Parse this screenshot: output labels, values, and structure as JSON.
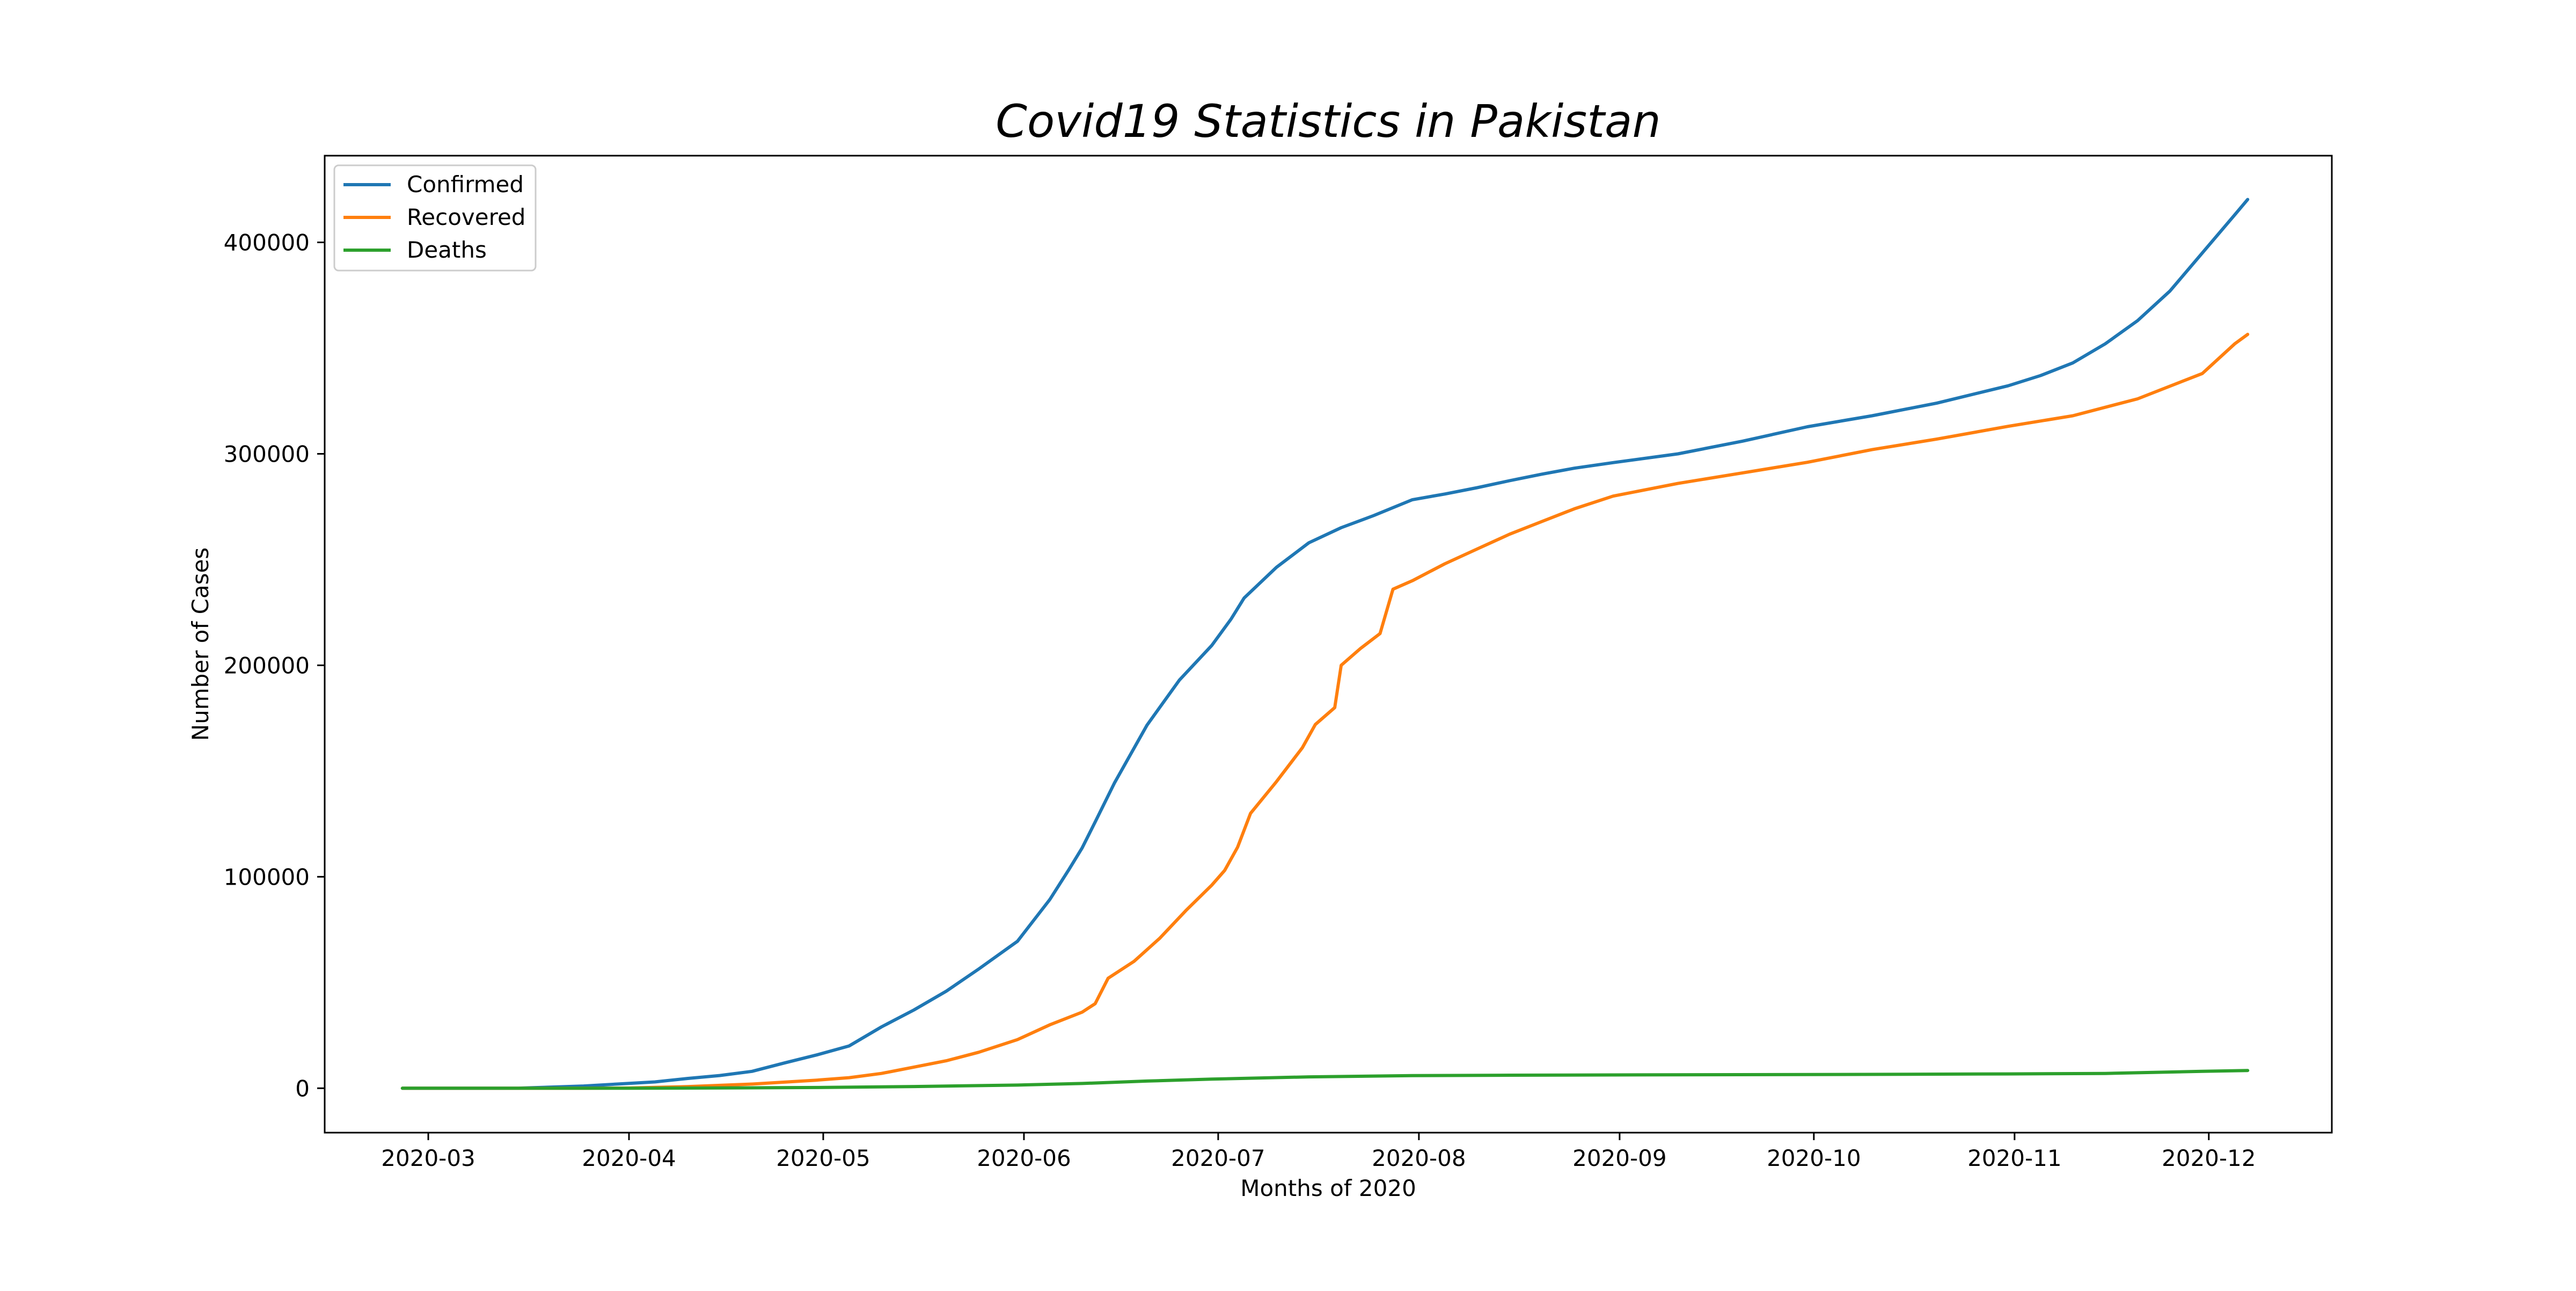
{
  "chart_data": {
    "type": "line",
    "title": "Covid19 Statistics in Pakistan",
    "xlabel": "Months of 2020",
    "ylabel": "Number of Cases",
    "x_axis_type": "date",
    "xlim": [
      "2020-02-14",
      "2020-12-20"
    ],
    "ylim": [
      -21000,
      441000
    ],
    "x_ticks": [
      "2020-03",
      "2020-04",
      "2020-05",
      "2020-06",
      "2020-07",
      "2020-08",
      "2020-09",
      "2020-10",
      "2020-11",
      "2020-12"
    ],
    "y_ticks": [
      0,
      100000,
      200000,
      300000,
      400000
    ],
    "grid": false,
    "legend_position": "top-left",
    "series": [
      {
        "name": "Confirmed",
        "color": "#1f77b4",
        "points": [
          [
            "2020-02-26",
            2
          ],
          [
            "2020-03-05",
            5
          ],
          [
            "2020-03-15",
            53
          ],
          [
            "2020-03-25",
            1063
          ],
          [
            "2020-04-01",
            2291
          ],
          [
            "2020-04-05",
            3000
          ],
          [
            "2020-04-10",
            4601
          ],
          [
            "2020-04-15",
            6000
          ],
          [
            "2020-04-20",
            8000
          ],
          [
            "2020-04-25",
            11940
          ],
          [
            "2020-04-30",
            15759
          ],
          [
            "2020-05-05",
            20000
          ],
          [
            "2020-05-10",
            29000
          ],
          [
            "2020-05-15",
            37000
          ],
          [
            "2020-05-20",
            45898
          ],
          [
            "2020-05-25",
            56349
          ],
          [
            "2020-05-31",
            69496
          ],
          [
            "2020-06-05",
            89249
          ],
          [
            "2020-06-08",
            103671
          ],
          [
            "2020-06-10",
            113702
          ],
          [
            "2020-06-12",
            125933
          ],
          [
            "2020-06-15",
            144478
          ],
          [
            "2020-06-20",
            171666
          ],
          [
            "2020-06-25",
            192970
          ],
          [
            "2020-06-30",
            209337
          ],
          [
            "2020-07-03",
            221896
          ],
          [
            "2020-07-05",
            231818
          ],
          [
            "2020-07-10",
            246351
          ],
          [
            "2020-07-15",
            257914
          ],
          [
            "2020-07-20",
            265083
          ],
          [
            "2020-07-25",
            270800
          ],
          [
            "2020-07-31",
            278305
          ],
          [
            "2020-08-05",
            281000
          ],
          [
            "2020-08-10",
            284000
          ],
          [
            "2020-08-15",
            287300
          ],
          [
            "2020-08-20",
            290400
          ],
          [
            "2020-08-25",
            293200
          ],
          [
            "2020-08-31",
            295849
          ],
          [
            "2020-09-10",
            300000
          ],
          [
            "2020-09-20",
            306000
          ],
          [
            "2020-09-30",
            312806
          ],
          [
            "2020-10-10",
            318000
          ],
          [
            "2020-10-20",
            324000
          ],
          [
            "2020-10-31",
            332186
          ],
          [
            "2020-11-05",
            337000
          ],
          [
            "2020-11-10",
            343000
          ],
          [
            "2020-11-15",
            352000
          ],
          [
            "2020-11-20",
            363000
          ],
          [
            "2020-11-25",
            377000
          ],
          [
            "2020-11-30",
            395000
          ],
          [
            "2020-12-05",
            413000
          ],
          [
            "2020-12-07",
            420294
          ]
        ]
      },
      {
        "name": "Recovered",
        "color": "#ff7f0e",
        "points": [
          [
            "2020-02-26",
            0
          ],
          [
            "2020-03-15",
            2
          ],
          [
            "2020-03-25",
            30
          ],
          [
            "2020-04-01",
            107
          ],
          [
            "2020-04-10",
            762
          ],
          [
            "2020-04-20",
            1970
          ],
          [
            "2020-04-30",
            3814
          ],
          [
            "2020-05-05",
            5000
          ],
          [
            "2020-05-10",
            7000
          ],
          [
            "2020-05-15",
            10000
          ],
          [
            "2020-05-20",
            13000
          ],
          [
            "2020-05-25",
            17000
          ],
          [
            "2020-05-31",
            23000
          ],
          [
            "2020-06-05",
            30000
          ],
          [
            "2020-06-10",
            36000
          ],
          [
            "2020-06-12",
            40000
          ],
          [
            "2020-06-14",
            52000
          ],
          [
            "2020-06-18",
            60000
          ],
          [
            "2020-06-22",
            71000
          ],
          [
            "2020-06-26",
            84000
          ],
          [
            "2020-06-30",
            96000
          ],
          [
            "2020-07-02",
            103000
          ],
          [
            "2020-07-04",
            114000
          ],
          [
            "2020-07-06",
            130000
          ],
          [
            "2020-07-10",
            145000
          ],
          [
            "2020-07-14",
            161000
          ],
          [
            "2020-07-16",
            172000
          ],
          [
            "2020-07-19",
            180000
          ],
          [
            "2020-07-20",
            200000
          ],
          [
            "2020-07-23",
            208000
          ],
          [
            "2020-07-26",
            215000
          ],
          [
            "2020-07-28",
            236000
          ],
          [
            "2020-07-31",
            240000
          ],
          [
            "2020-08-05",
            248000
          ],
          [
            "2020-08-10",
            255000
          ],
          [
            "2020-08-15",
            262000
          ],
          [
            "2020-08-20",
            268000
          ],
          [
            "2020-08-25",
            274000
          ],
          [
            "2020-08-31",
            280000
          ],
          [
            "2020-09-10",
            286000
          ],
          [
            "2020-09-20",
            291000
          ],
          [
            "2020-09-30",
            296000
          ],
          [
            "2020-10-10",
            302000
          ],
          [
            "2020-10-20",
            307000
          ],
          [
            "2020-10-31",
            313000
          ],
          [
            "2020-11-10",
            318000
          ],
          [
            "2020-11-20",
            326000
          ],
          [
            "2020-11-30",
            338000
          ],
          [
            "2020-12-05",
            352000
          ],
          [
            "2020-12-07",
            356493
          ]
        ]
      },
      {
        "name": "Deaths",
        "color": "#2ca02c",
        "points": [
          [
            "2020-02-26",
            0
          ],
          [
            "2020-03-20",
            3
          ],
          [
            "2020-04-01",
            31
          ],
          [
            "2020-04-15",
            111
          ],
          [
            "2020-04-30",
            343
          ],
          [
            "2020-05-15",
            803
          ],
          [
            "2020-05-31",
            1483
          ],
          [
            "2020-06-10",
            2255
          ],
          [
            "2020-06-20",
            3382
          ],
          [
            "2020-06-30",
            4304
          ],
          [
            "2020-07-15",
            5386
          ],
          [
            "2020-07-31",
            5951
          ],
          [
            "2020-08-15",
            6153
          ],
          [
            "2020-08-31",
            6284
          ],
          [
            "2020-09-30",
            6474
          ],
          [
            "2020-10-31",
            6778
          ],
          [
            "2020-11-15",
            7000
          ],
          [
            "2020-11-30",
            8000
          ],
          [
            "2020-12-07",
            8398
          ]
        ]
      }
    ]
  }
}
